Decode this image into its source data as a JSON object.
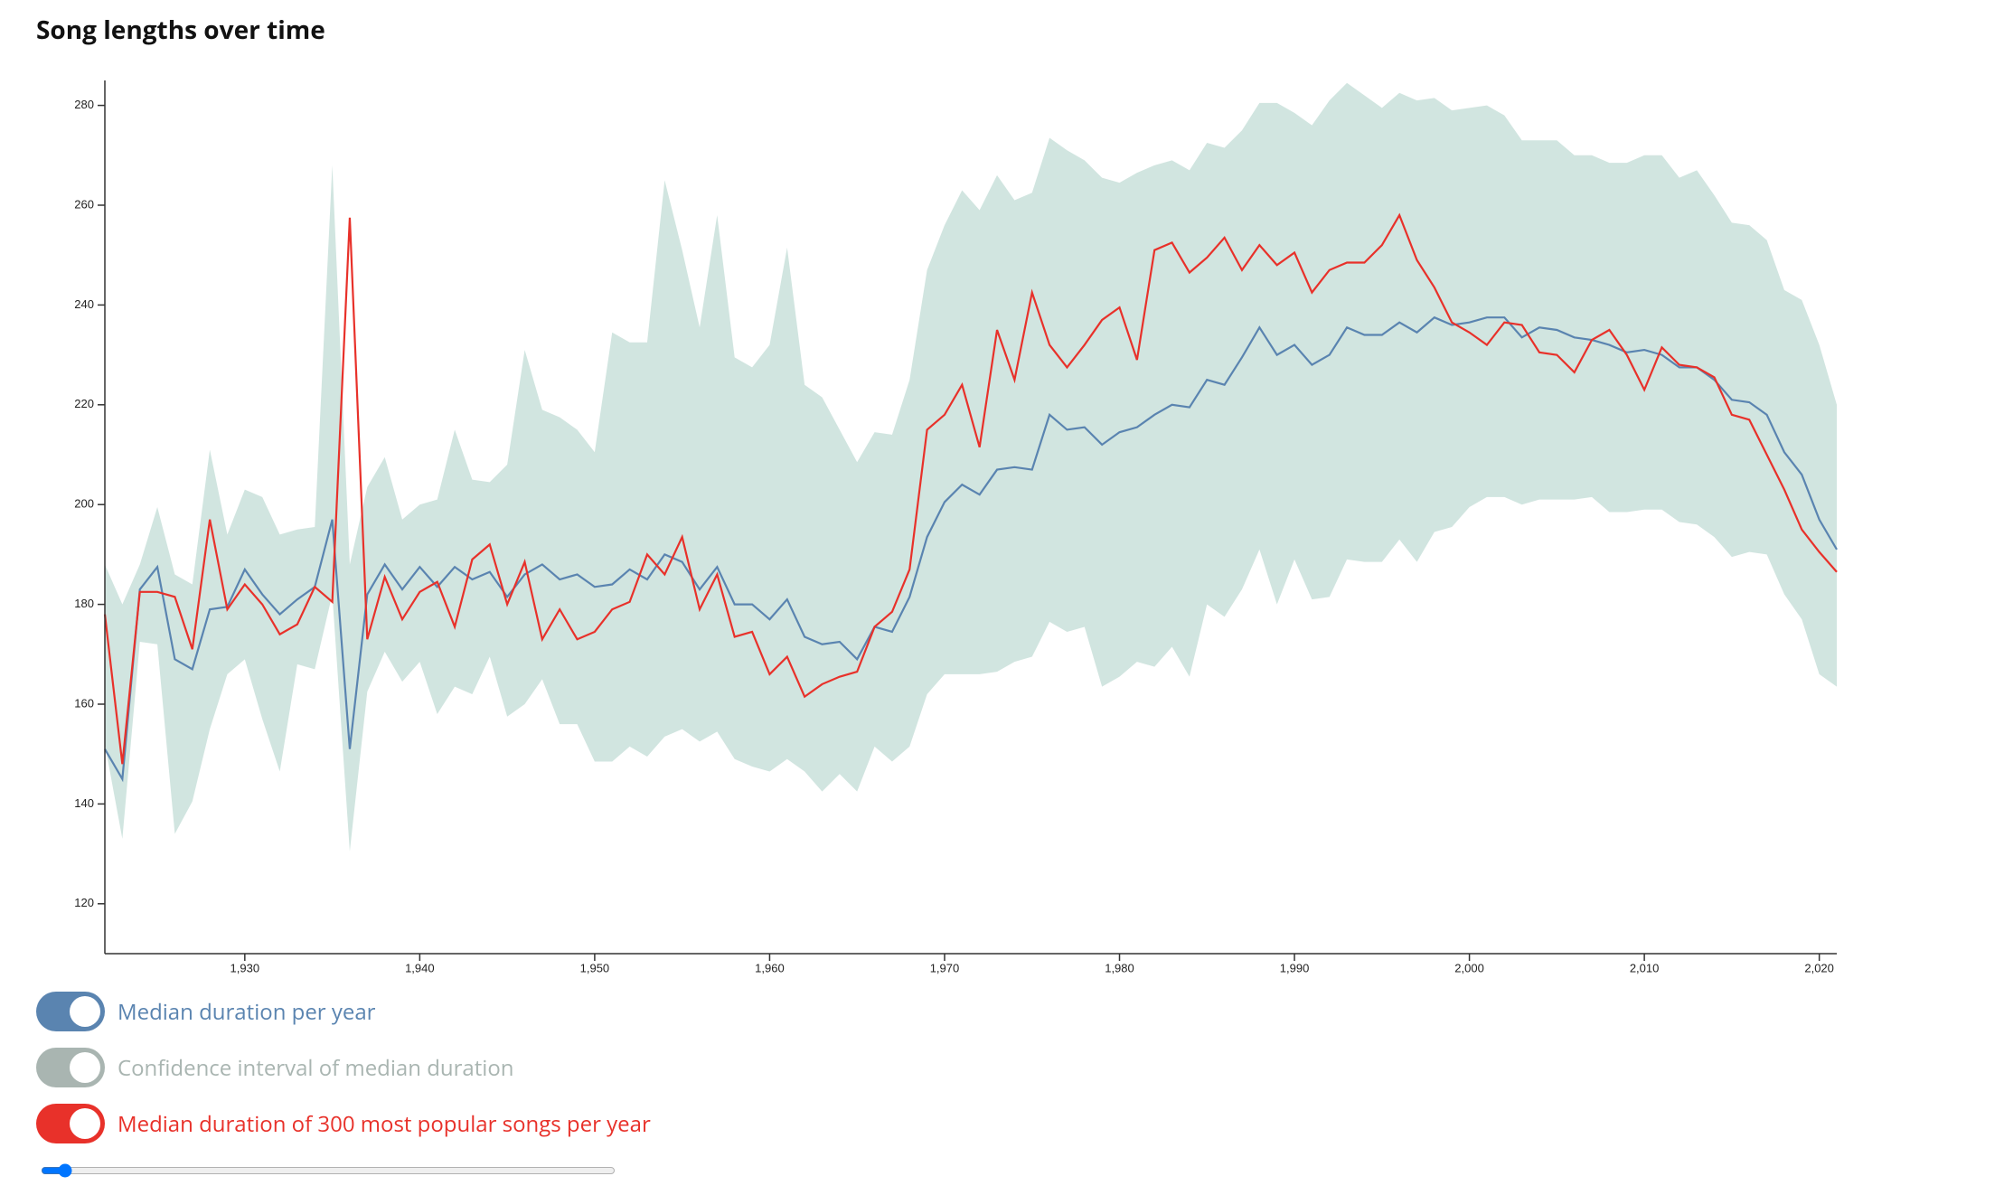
{
  "chart_data": {
    "type": "line",
    "title": "Song lengths over time",
    "x": [
      1922,
      1923,
      1924,
      1925,
      1926,
      1927,
      1928,
      1929,
      1930,
      1931,
      1932,
      1933,
      1934,
      1935,
      1936,
      1937,
      1938,
      1939,
      1940,
      1941,
      1942,
      1943,
      1944,
      1945,
      1946,
      1947,
      1948,
      1949,
      1950,
      1951,
      1952,
      1953,
      1954,
      1955,
      1956,
      1957,
      1958,
      1959,
      1960,
      1961,
      1962,
      1963,
      1964,
      1965,
      1966,
      1967,
      1968,
      1969,
      1970,
      1971,
      1972,
      1973,
      1974,
      1975,
      1976,
      1977,
      1978,
      1979,
      1980,
      1981,
      1982,
      1983,
      1984,
      1985,
      1986,
      1987,
      1988,
      1989,
      1990,
      1991,
      1992,
      1993,
      1994,
      1995,
      1996,
      1997,
      1998,
      1999,
      2000,
      2001,
      2002,
      2003,
      2004,
      2005,
      2006,
      2007,
      2008,
      2009,
      2010,
      2011,
      2012,
      2013,
      2014,
      2015,
      2016,
      2017,
      2018,
      2019,
      2020,
      2021
    ],
    "series": [
      {
        "name": "Median duration per year",
        "color": "#5a84b0",
        "values": [
          151,
          145,
          183,
          187.5,
          169,
          167,
          179,
          179.5,
          187,
          182,
          178,
          181,
          183.5,
          197,
          151,
          182,
          188,
          183,
          187.5,
          183.5,
          187.5,
          185,
          186.5,
          181.5,
          186,
          188,
          185,
          186,
          183.5,
          184,
          187,
          185,
          190,
          188.5,
          183,
          187.5,
          180,
          180,
          177,
          181,
          173.5,
          172,
          172.5,
          169,
          175.5,
          174.5,
          181.5,
          193.5,
          200.5,
          204,
          202,
          207,
          207.5,
          207,
          218,
          215,
          215.5,
          212,
          214.5,
          215.5,
          218,
          220,
          219.5,
          225,
          224,
          229.5,
          235.5,
          230,
          232,
          228,
          230,
          235.5,
          234,
          234,
          236.5,
          234.5,
          237.5,
          236,
          236.5,
          237.5,
          237.5,
          233.5,
          235.5,
          235,
          233.5,
          233,
          232,
          230.5,
          231,
          230,
          227.5,
          227.5,
          225,
          221,
          220.5,
          218,
          210.5,
          206,
          197,
          191
        ]
      },
      {
        "name": "Confidence interval of median duration",
        "color": "#a9b5b1",
        "fill": "#d1e5e0",
        "upper": [
          188,
          180,
          188,
          199.5,
          186,
          184,
          211,
          194,
          203,
          201.5,
          194,
          195,
          195.5,
          268,
          188,
          203.5,
          209.5,
          197,
          200,
          201,
          215,
          205,
          204.5,
          208,
          231,
          219,
          217.5,
          215,
          210.5,
          234.5,
          232.5,
          232.5,
          265,
          251,
          235.5,
          258,
          229.5,
          227.5,
          232,
          251.5,
          224,
          221.5,
          215,
          208.5,
          214.5,
          214,
          225,
          247,
          256,
          263,
          259,
          266,
          261,
          262.5,
          273.5,
          271,
          269,
          265.5,
          264.5,
          266.5,
          268,
          269,
          267,
          272.5,
          271.5,
          275,
          280.5,
          280.5,
          278.5,
          276,
          281,
          284.5,
          282,
          279.5,
          282.5,
          281,
          281.5,
          279,
          279.5,
          280,
          278,
          273,
          273,
          273,
          270,
          270,
          268.5,
          268.5,
          270,
          270,
          265.5,
          267,
          262,
          256.5,
          256,
          253,
          243,
          241,
          232,
          220
        ],
        "lower": [
          152,
          133,
          172.5,
          172,
          134,
          140.5,
          155,
          166,
          169,
          157,
          146.5,
          168,
          167,
          182,
          130.5,
          162.5,
          170.5,
          164.5,
          168.5,
          158,
          163.5,
          162,
          169.5,
          157.5,
          160,
          165,
          156,
          156,
          148.5,
          148.5,
          151.5,
          149.5,
          153.5,
          155,
          152.5,
          154.5,
          149,
          147.5,
          146.5,
          149,
          146.5,
          142.5,
          146,
          142.5,
          151.5,
          148.5,
          151.5,
          162,
          166,
          166,
          166,
          166.5,
          168.5,
          169.5,
          176.5,
          174.5,
          175.5,
          163.5,
          165.5,
          168.5,
          167.5,
          171.5,
          165.5,
          180,
          177.5,
          183,
          191,
          180,
          189,
          181,
          181.5,
          189,
          188.5,
          188.5,
          193,
          188.5,
          194.5,
          195.5,
          199.5,
          201.5,
          201.5,
          200,
          201,
          201,
          201,
          201.5,
          198.5,
          198.5,
          199,
          199,
          196.5,
          196,
          193.5,
          189.5,
          190.5,
          190,
          182,
          177,
          166,
          163.5
        ]
      },
      {
        "name": "Median duration of 300 most popular songs per year",
        "color": "#e8312a",
        "values": [
          178,
          148,
          182.5,
          182.5,
          181.5,
          171,
          197,
          179,
          184,
          180,
          174,
          176,
          183.5,
          180.5,
          257.5,
          173,
          185.5,
          177,
          182.5,
          184.5,
          175.5,
          189,
          192,
          180,
          188.5,
          173,
          179,
          173,
          174.5,
          179,
          180.5,
          190,
          186,
          193.5,
          179,
          186,
          173.5,
          174.5,
          166,
          169.5,
          161.5,
          164,
          165.5,
          166.5,
          175.5,
          178.5,
          187,
          215,
          218,
          224,
          211.5,
          235,
          225,
          242.5,
          232,
          227.5,
          232,
          237,
          239.5,
          229,
          251,
          252.5,
          246.5,
          249.5,
          253.5,
          247,
          252,
          248,
          250.5,
          242.5,
          247,
          248.5,
          248.5,
          252,
          258,
          249,
          243.5,
          236.5,
          234.5,
          232,
          236.5,
          236,
          230.5,
          230,
          226.5,
          233,
          235,
          230,
          223,
          231.5,
          228,
          227.5,
          225.5,
          218,
          217,
          210,
          203,
          195,
          190.5,
          186.5
        ]
      }
    ],
    "xlim": [
      1922,
      2021
    ],
    "ylim": [
      110,
      285
    ],
    "xticks": [
      {
        "value": 1930,
        "label": "1,930"
      },
      {
        "value": 1940,
        "label": "1,940"
      },
      {
        "value": 1950,
        "label": "1,950"
      },
      {
        "value": 1960,
        "label": "1,960"
      },
      {
        "value": 1970,
        "label": "1,970"
      },
      {
        "value": 1980,
        "label": "1,980"
      },
      {
        "value": 1990,
        "label": "1,990"
      },
      {
        "value": 2000,
        "label": "2,000"
      },
      {
        "value": 2010,
        "label": "2,010"
      },
      {
        "value": 2020,
        "label": "2,020"
      }
    ],
    "yticks": [
      120,
      140,
      160,
      180,
      200,
      220,
      240,
      260,
      280
    ]
  }
}
